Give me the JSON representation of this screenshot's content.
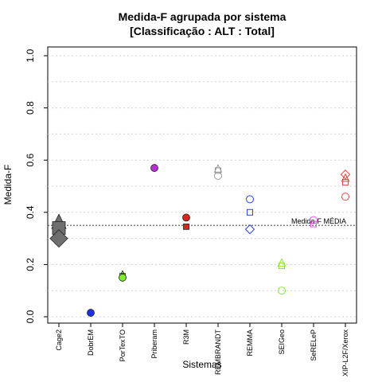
{
  "chart_data": {
    "type": "scatter",
    "title": "Medida-F agrupada por sistema",
    "subtitle": "[Classificação : ALT : Total]",
    "xlabel": "Sistemas",
    "ylabel": "Medida-F",
    "ylim": [
      0,
      1
    ],
    "yticks": [
      "0.0",
      "0.2",
      "0.4",
      "0.6",
      "0.8",
      "1.0"
    ],
    "grid": true,
    "categories": [
      "Cage2",
      "DobrEM",
      "PorTexTO",
      "Priberam",
      "R3M",
      "REMBRANDT",
      "REMMA",
      "SEIGeo",
      "SeRELeP",
      "XIP-L2F/Xerox"
    ],
    "reference_line": {
      "label": "Medida-F MÉDIA",
      "value": 0.35
    },
    "points": [
      {
        "category": "Cage2",
        "value": 0.36,
        "shape": "triangle",
        "color": "#6e6e6e",
        "filled": true,
        "size": "large"
      },
      {
        "category": "Cage2",
        "value": 0.34,
        "shape": "square",
        "color": "#6e6e6e",
        "filled": true,
        "size": "large"
      },
      {
        "category": "Cage2",
        "value": 0.3,
        "shape": "diamond",
        "color": "#6e6e6e",
        "filled": true,
        "size": "large"
      },
      {
        "category": "DobrEM",
        "value": 0.015,
        "shape": "circle",
        "color": "#1c2fe8",
        "filled": true,
        "size": "normal"
      },
      {
        "category": "PorTexTO",
        "value": 0.16,
        "shape": "triangle",
        "color": "#7cf02a",
        "filled": true,
        "size": "normal"
      },
      {
        "category": "PorTexTO",
        "value": 0.155,
        "shape": "square",
        "color": "#7cf02a",
        "filled": true,
        "size": "normal"
      },
      {
        "category": "PorTexTO",
        "value": 0.15,
        "shape": "circle",
        "color": "#7cf02a",
        "filled": true,
        "size": "normal"
      },
      {
        "category": "Priberam",
        "value": 0.57,
        "shape": "circle",
        "color": "#b92fd6",
        "filled": true,
        "size": "normal"
      },
      {
        "category": "R3M",
        "value": 0.38,
        "shape": "circle",
        "color": "#d7261e",
        "filled": true,
        "size": "normal"
      },
      {
        "category": "R3M",
        "value": 0.345,
        "shape": "square",
        "color": "#d7261e",
        "filled": true,
        "size": "normal"
      },
      {
        "category": "REMBRANDT",
        "value": 0.565,
        "shape": "triangle",
        "color": "#9a9a9a",
        "filled": false,
        "size": "normal"
      },
      {
        "category": "REMBRANDT",
        "value": 0.56,
        "shape": "square",
        "color": "#9a9a9a",
        "filled": false,
        "size": "normal"
      },
      {
        "category": "REMBRANDT",
        "value": 0.54,
        "shape": "circle",
        "color": "#9a9a9a",
        "filled": false,
        "size": "normal"
      },
      {
        "category": "REMMA",
        "value": 0.45,
        "shape": "circle",
        "color": "#2b44e0",
        "filled": false,
        "size": "normal"
      },
      {
        "category": "REMMA",
        "value": 0.4,
        "shape": "square",
        "color": "#2b44e0",
        "filled": false,
        "size": "normal"
      },
      {
        "category": "REMMA",
        "value": 0.335,
        "shape": "diamond",
        "color": "#2b44e0",
        "filled": false,
        "size": "normal"
      },
      {
        "category": "SEIGeo",
        "value": 0.205,
        "shape": "triangle",
        "color": "#86e83a",
        "filled": false,
        "size": "normal"
      },
      {
        "category": "SEIGeo",
        "value": 0.195,
        "shape": "square",
        "color": "#86e83a",
        "filled": false,
        "size": "normal"
      },
      {
        "category": "SEIGeo",
        "value": 0.1,
        "shape": "circle",
        "color": "#86e83a",
        "filled": false,
        "size": "normal"
      },
      {
        "category": "SeRELeP",
        "value": 0.37,
        "shape": "circle",
        "color": "#e055e0",
        "filled": false,
        "size": "normal"
      },
      {
        "category": "SeRELeP",
        "value": 0.355,
        "shape": "square",
        "color": "#e055e0",
        "filled": false,
        "size": "normal"
      },
      {
        "category": "XIP-L2F/Xerox",
        "value": 0.545,
        "shape": "diamond",
        "color": "#e84545",
        "filled": false,
        "size": "normal"
      },
      {
        "category": "XIP-L2F/Xerox",
        "value": 0.53,
        "shape": "triangle",
        "color": "#e84545",
        "filled": false,
        "size": "normal"
      },
      {
        "category": "XIP-L2F/Xerox",
        "value": 0.515,
        "shape": "square",
        "color": "#e84545",
        "filled": false,
        "size": "normal"
      },
      {
        "category": "XIP-L2F/Xerox",
        "value": 0.46,
        "shape": "circle",
        "color": "#e84545",
        "filled": false,
        "size": "normal"
      }
    ]
  }
}
